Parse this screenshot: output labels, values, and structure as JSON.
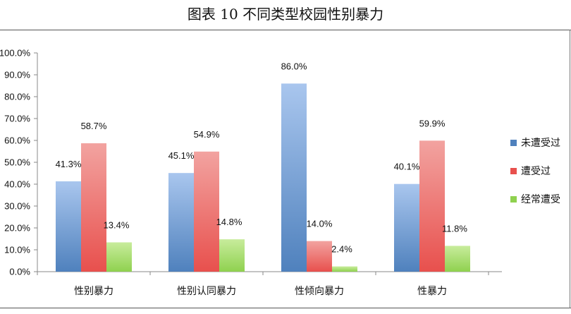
{
  "chart_data": {
    "type": "bar",
    "title": "图表 10  不同类型校园性别暴力",
    "categories": [
      "性别暴力",
      "性别认同暴力",
      "性倾向暴力",
      "性暴力"
    ],
    "series": [
      {
        "name": "未遭受过",
        "values": [
          41.3,
          45.1,
          86.0,
          40.1
        ],
        "labels": [
          "41.3%",
          "45.1%",
          "86.0%",
          "40.1%"
        ],
        "color": "#4f81bd"
      },
      {
        "name": "遭受过",
        "values": [
          58.7,
          54.9,
          14.0,
          59.9
        ],
        "labels": [
          "58.7%",
          "54.9%",
          "14.0%",
          "59.9%"
        ],
        "color": "#e8504d"
      },
      {
        "name": "经常遭受",
        "values": [
          13.4,
          14.8,
          2.4,
          11.8
        ],
        "labels": [
          "13.4%",
          "14.8%",
          "2.4%",
          "11.8%"
        ],
        "color": "#8fd14f"
      }
    ],
    "yticks": [
      "0.0%",
      "10.0%",
      "20.0%",
      "30.0%",
      "40.0%",
      "50.0%",
      "60.0%",
      "70.0%",
      "80.0%",
      "90.0%",
      "100.0%"
    ],
    "ylim": [
      0,
      100
    ],
    "xlabel": "",
    "ylabel": "",
    "grid": false,
    "legend_position": "right"
  }
}
